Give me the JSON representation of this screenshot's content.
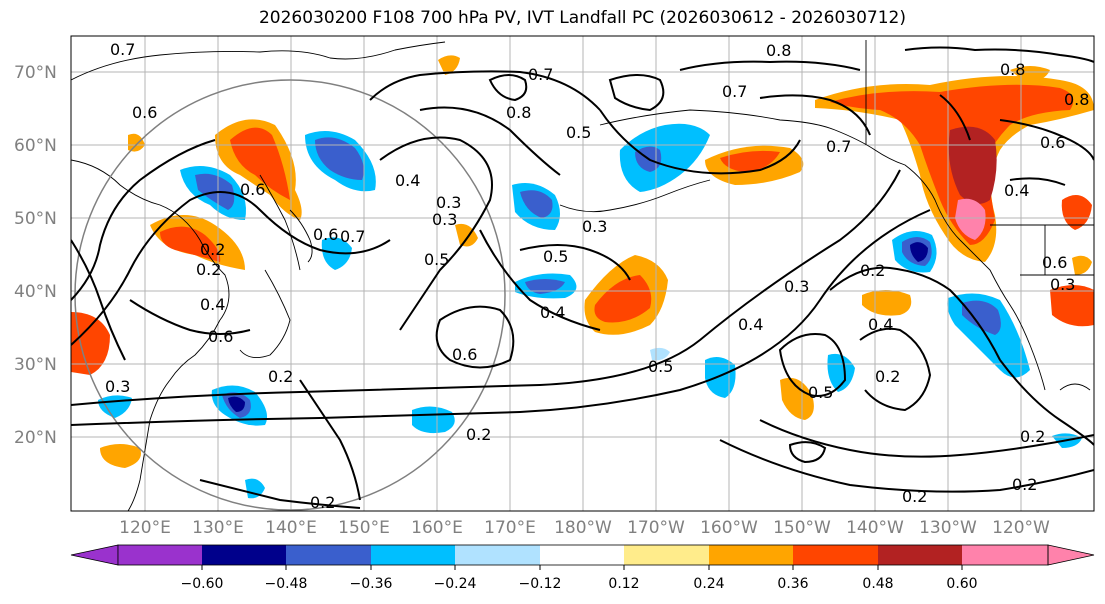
{
  "title": "2026030200 F108 700 hPa PV, IVT Landfall PC (2026030612 - 2026030712)",
  "map": {
    "projection": "equirectangular",
    "lon_ticks": [
      "120°E",
      "130°E",
      "140°E",
      "150°E",
      "160°E",
      "170°E",
      "180°W",
      "170°W",
      "160°W",
      "150°W",
      "140°W",
      "130°W",
      "120°W"
    ],
    "lat_ticks": [
      "70°N",
      "60°N",
      "50°N",
      "40°N",
      "30°N",
      "20°N"
    ],
    "contour_labels": [
      "0.7",
      "0.6",
      "0.6",
      "0.3",
      "0.6",
      "0.8",
      "0.7",
      "0.5",
      "0.8",
      "0.7",
      "0.8",
      "0.7",
      "0.8",
      "0.6",
      "0.4",
      "0.2",
      "0.4",
      "0.6",
      "0.3",
      "0.5",
      "0.3",
      "0.5",
      "0.3",
      "0.4",
      "0.7",
      "0.6",
      "0.4",
      "0.2",
      "0.3",
      "0.2",
      "0.5",
      "0.4",
      "0.4",
      "0.5",
      "0.2",
      "0.2",
      "0.2",
      "0.2",
      "0.2",
      "0.3",
      "0.6",
      "0.2",
      "0.2"
    ],
    "grid": true,
    "range_circle": true
  },
  "colorbar": {
    "ticks": [
      "−0.60",
      "−0.48",
      "−0.36",
      "−0.24",
      "−0.12",
      "0.12",
      "0.24",
      "0.36",
      "0.48",
      "0.60"
    ],
    "colors": [
      "#9a32cd",
      "#00008b",
      "#3a5fcd",
      "#00bfff",
      "#b0e2ff",
      "#ffffff",
      "#ffec8b",
      "#ffa500",
      "#ff4500",
      "#b22222",
      "#ff82ab"
    ]
  }
}
